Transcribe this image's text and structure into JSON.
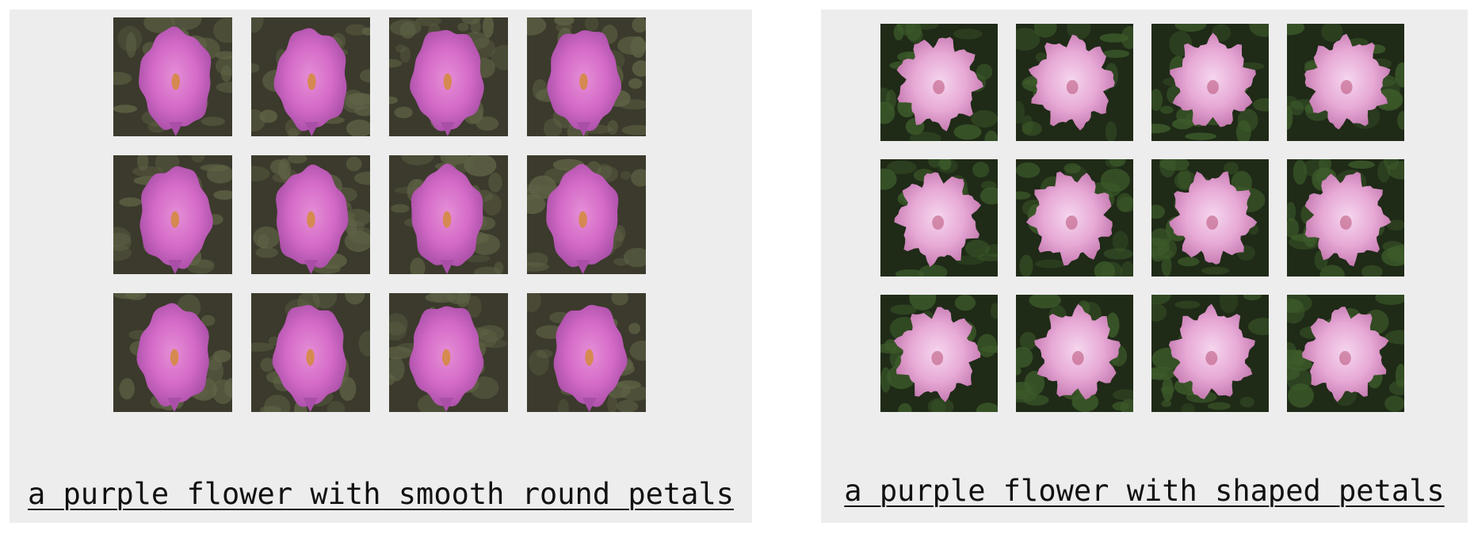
{
  "panels": [
    {
      "id": "left",
      "caption": "a purple flower with smooth round petals",
      "rows": 3,
      "cols": 4,
      "style": "smooth",
      "colors": {
        "background_dark": "#3b3a2c",
        "background_mid": "#5f6345",
        "petal_main": "#d56bc8",
        "petal_light": "#e58fd6",
        "petal_shadow": "#a94fa8",
        "center": "#d48a3a"
      }
    },
    {
      "id": "right",
      "caption": "a purple flower with shaped petals",
      "rows": 3,
      "cols": 4,
      "style": "ruffled",
      "colors": {
        "background_dark": "#1f2a17",
        "background_mid": "#3c5a2a",
        "petal_main": "#e7a9d6",
        "petal_light": "#f5d6ee",
        "petal_shadow": "#c276ad",
        "center": "#b84f74"
      }
    }
  ]
}
